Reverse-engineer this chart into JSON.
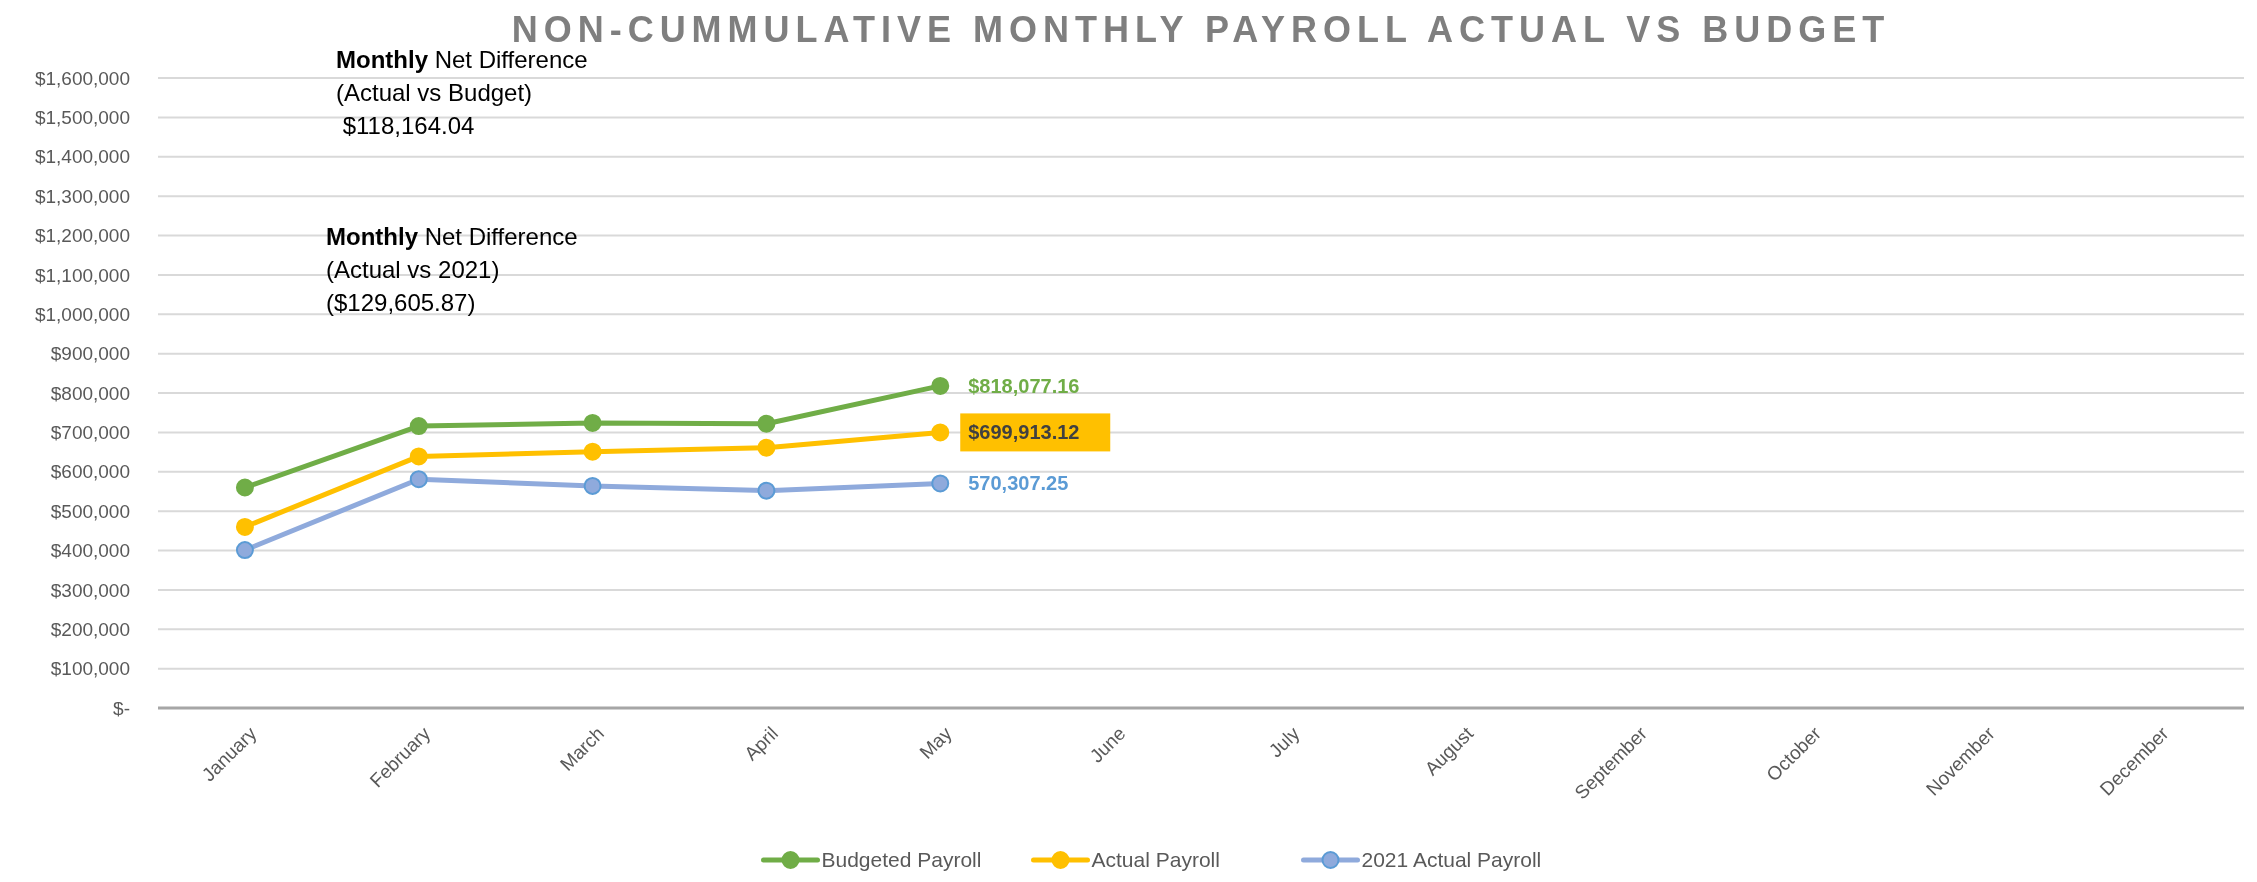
{
  "chart_data": {
    "type": "line",
    "title": "NON-CUMMULATIVE MONTHLY PAYROLL ACTUAL VS BUDGET",
    "categories": [
      "January",
      "February",
      "March",
      "April",
      "May",
      "June",
      "July",
      "August",
      "September",
      "October",
      "November",
      "December"
    ],
    "series": [
      {
        "name": "Budgeted Payroll",
        "color": "#70ad47",
        "values": [
          560000,
          716000,
          724000,
          722000,
          818077.16,
          null,
          null,
          null,
          null,
          null,
          null,
          null
        ],
        "value_labels": [
          null,
          null,
          null,
          null,
          "$818,077.16",
          null,
          null,
          null,
          null,
          null,
          null,
          null
        ]
      },
      {
        "name": "Actual Payroll",
        "color": "#ffc000",
        "values": [
          460000,
          639000,
          651000,
          661000,
          699913.12,
          null,
          null,
          null,
          null,
          null,
          null,
          null
        ],
        "value_labels": [
          null,
          null,
          null,
          null,
          "$699,913.12",
          null,
          null,
          null,
          null,
          null,
          null,
          null
        ]
      },
      {
        "name": "2021 Actual Payroll",
        "color": "#8faadc",
        "values": [
          401000,
          581000,
          564000,
          552000,
          570307.25,
          null,
          null,
          null,
          null,
          null,
          null,
          null
        ],
        "value_labels": [
          null,
          null,
          null,
          null,
          "570,307.25",
          null,
          null,
          null,
          null,
          null,
          null,
          null
        ]
      }
    ],
    "ylim": [
      0,
      1600000
    ],
    "yticks": [
      {
        "value": 0,
        "label": "$-"
      },
      {
        "value": 100000,
        "label": "$100,000"
      },
      {
        "value": 200000,
        "label": "$200,000"
      },
      {
        "value": 300000,
        "label": "$300,000"
      },
      {
        "value": 400000,
        "label": "$400,000"
      },
      {
        "value": 500000,
        "label": "$500,000"
      },
      {
        "value": 600000,
        "label": "$600,000"
      },
      {
        "value": 700000,
        "label": "$700,000"
      },
      {
        "value": 800000,
        "label": "$800,000"
      },
      {
        "value": 900000,
        "label": "$900,000"
      },
      {
        "value": 1000000,
        "label": "$1,000,000"
      },
      {
        "value": 1100000,
        "label": "$1,100,000"
      },
      {
        "value": 1200000,
        "label": "$1,200,000"
      },
      {
        "value": 1300000,
        "label": "$1,300,000"
      },
      {
        "value": 1400000,
        "label": "$1,400,000"
      },
      {
        "value": 1500000,
        "label": "$1,500,000"
      },
      {
        "value": 1600000,
        "label": "$1,600,000"
      }
    ],
    "grid": "y",
    "legend": "bottom",
    "marker": "circle",
    "line_style": "solid",
    "annotations": [
      "Monthly Net Difference\n(Actual vs Budget)\n $118,164.04",
      "Monthly Net Difference\n(Actual vs 2021)\n($129,605.87)"
    ]
  }
}
